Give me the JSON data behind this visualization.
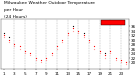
{
  "title": "Milwaukee Weather Outdoor Temperature per Hour (24 Hours)",
  "hours": [
    1,
    2,
    3,
    4,
    5,
    6,
    7,
    8,
    9,
    10,
    11,
    12,
    13,
    14,
    15,
    16,
    17,
    18,
    19,
    20,
    21,
    22,
    23,
    24
  ],
  "temps_red": [
    32,
    30,
    28,
    27,
    25,
    24,
    22,
    21,
    22,
    24,
    27,
    30,
    33,
    35,
    34,
    32,
    30,
    27,
    25,
    23,
    25,
    22,
    21,
    20
  ],
  "temps_pink": [
    31,
    29,
    27,
    26,
    24,
    23,
    21,
    20,
    21,
    23,
    26,
    29,
    32,
    34,
    33,
    31,
    29,
    26,
    24,
    22,
    24,
    21,
    20,
    19
  ],
  "temps_black": [
    33,
    31,
    null,
    null,
    null,
    null,
    null,
    null,
    null,
    null,
    null,
    null,
    null,
    36,
    null,
    33,
    null,
    null,
    null,
    24,
    null,
    null,
    null,
    null
  ],
  "dot_color_red": "#ff0000",
  "dot_color_pink": "#ff9999",
  "dot_color_black": "#000000",
  "grid_color": "#888888",
  "bg_color": "#ffffff",
  "legend_box_color": "#ff0000",
  "legend_box_text": "",
  "xlim": [
    0.5,
    24.5
  ],
  "ylim": [
    17,
    39
  ],
  "ytick_values": [
    20,
    22,
    24,
    26,
    28,
    30,
    32,
    34,
    36
  ],
  "ytick_labels": [
    "20",
    "22",
    "24",
    "26",
    "28",
    "30",
    "32",
    "34",
    "36"
  ],
  "xtick_values": [
    1,
    3,
    5,
    7,
    9,
    11,
    13,
    15,
    17,
    19,
    21,
    23
  ],
  "xtick_labels": [
    "1",
    "3",
    "5",
    "7",
    "9",
    "11",
    "13",
    "15",
    "17",
    "19",
    "21",
    "23"
  ],
  "tick_fontsize": 3.0,
  "title_fontsize": 3.2,
  "grid_x_positions": [
    3,
    5,
    7,
    9,
    11,
    13,
    15,
    17,
    19,
    21,
    23
  ]
}
